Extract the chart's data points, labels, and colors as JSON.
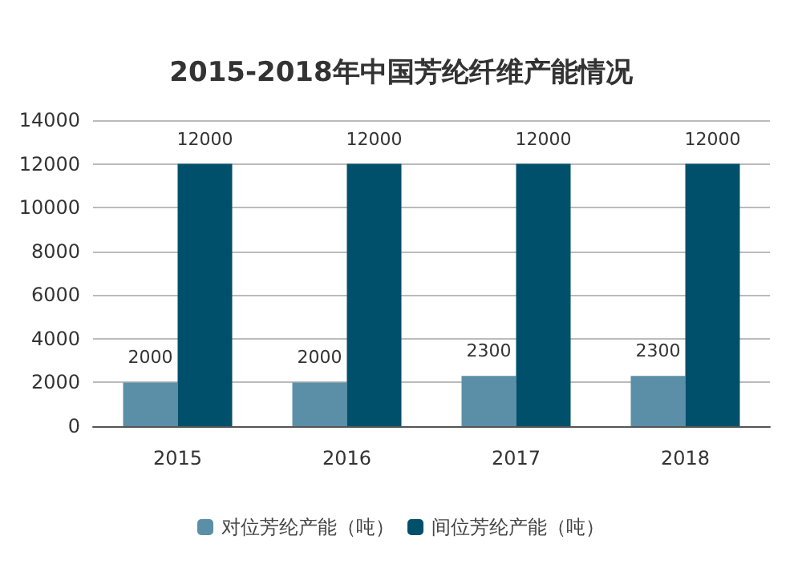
{
  "chart_data": {
    "type": "bar",
    "title": "2015-2018年中国芳纶纤维产能情况",
    "categories": [
      "2015",
      "2016",
      "2017",
      "2018"
    ],
    "series": [
      {
        "name": "对位芳纶产能（吨）",
        "color": "#5b8fa8",
        "values": [
          2000,
          2000,
          2300,
          2300
        ]
      },
      {
        "name": "间位芳纶产能（吨）",
        "color": "#00506b",
        "values": [
          12000,
          12000,
          12000,
          12000
        ]
      }
    ],
    "ylim": [
      0,
      14000
    ],
    "yticks": [
      0,
      2000,
      4000,
      6000,
      8000,
      10000,
      12000,
      14000
    ],
    "grid": "y",
    "legend": "bottom",
    "data_labels": true
  }
}
